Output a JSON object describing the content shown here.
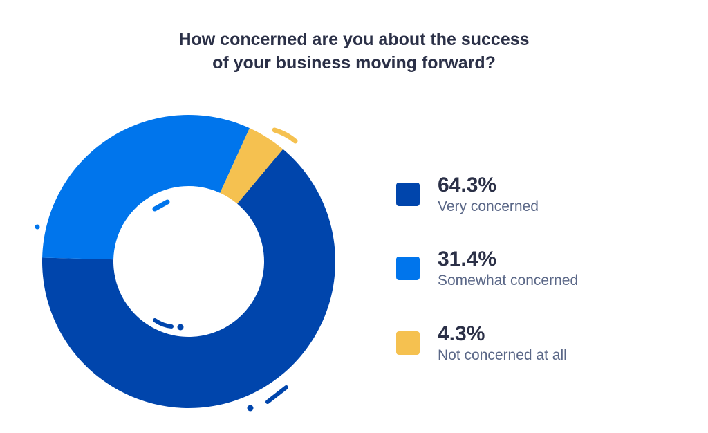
{
  "chart_data": {
    "type": "pie",
    "variant": "donut",
    "title": "How concerned are you about the success of your business moving forward?",
    "title_lines": [
      "How concerned are you about the success",
      "of your business moving forward?"
    ],
    "categories": [
      "Very concerned",
      "Somewhat concerned",
      "Not concerned at all"
    ],
    "values": [
      64.3,
      31.4,
      4.3
    ],
    "value_labels": [
      "64.3%",
      "31.4%",
      "4.3%"
    ],
    "colors": [
      "#0045ac",
      "#0075ec",
      "#f5c150"
    ],
    "legend_position": "right"
  },
  "legend": [
    {
      "pct": "64.3%",
      "label": "Very concerned",
      "color": "#0045ac"
    },
    {
      "pct": "31.4%",
      "label": "Somewhat concerned",
      "color": "#0075ec"
    },
    {
      "pct": "4.3%",
      "label": "Not concerned at all",
      "color": "#f5c150"
    }
  ]
}
